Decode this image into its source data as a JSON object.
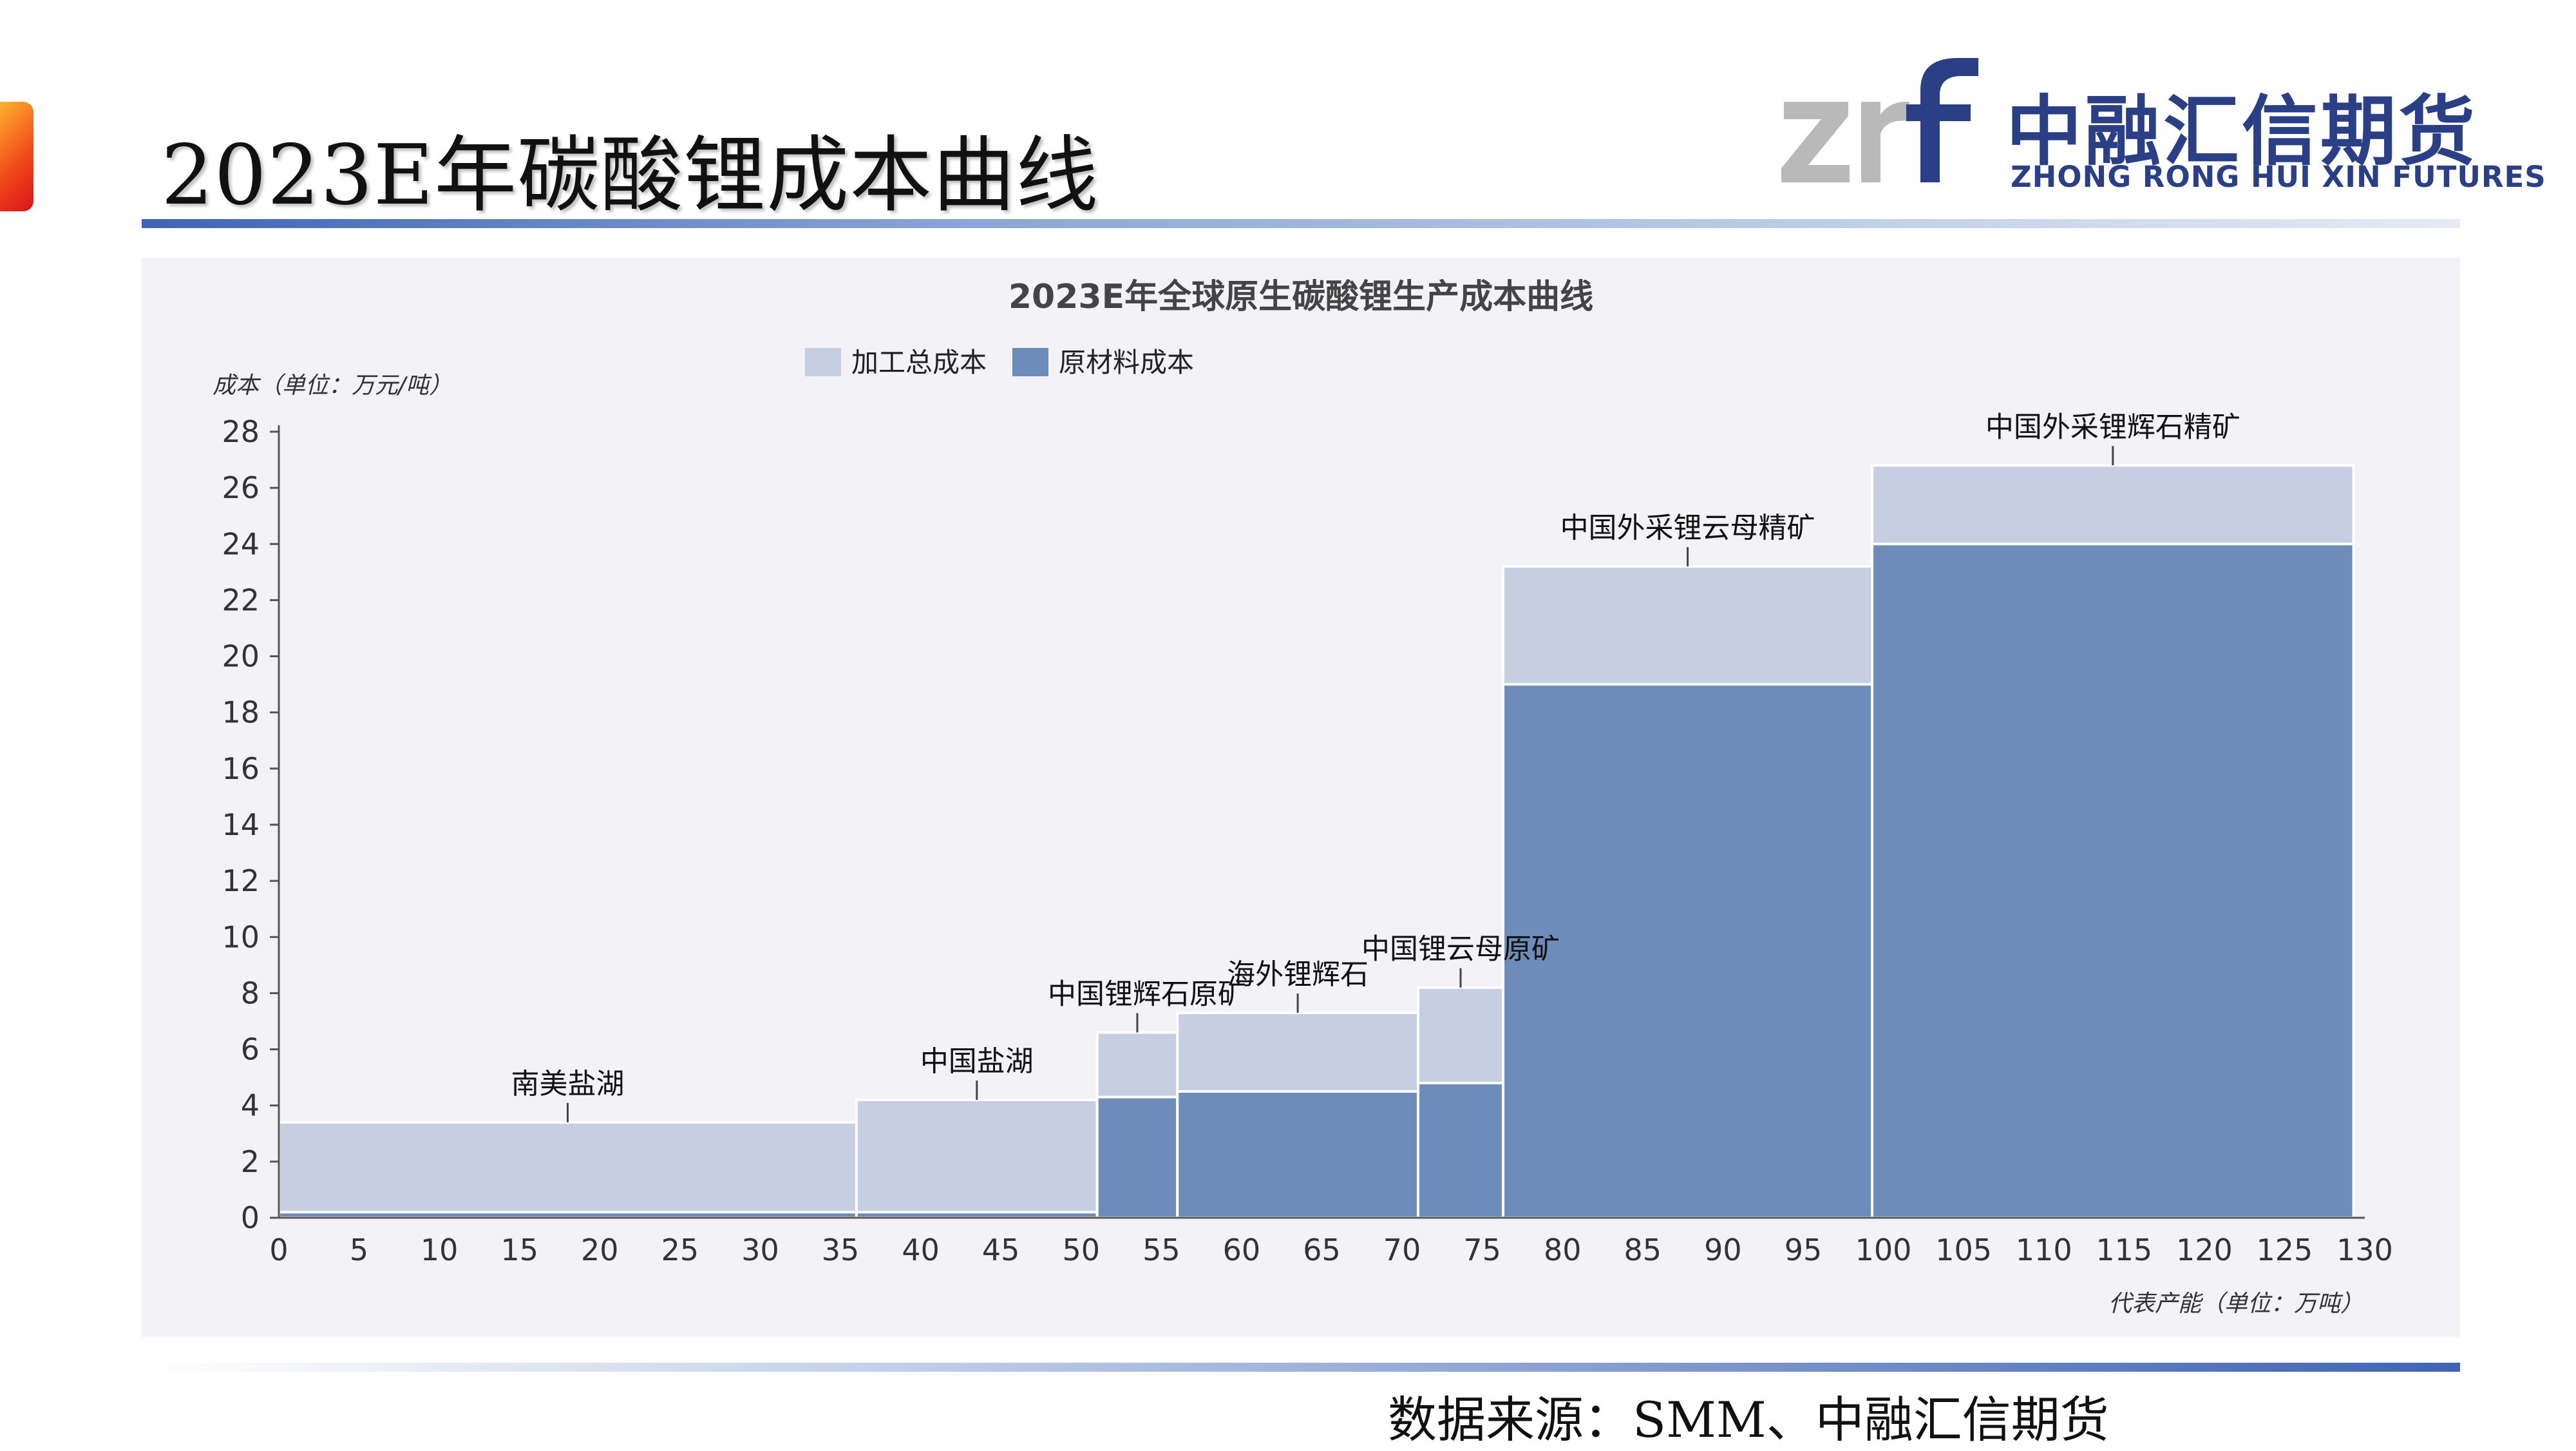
{
  "page": {
    "title": "2023E年碳酸锂成本曲线",
    "source": "数据来源：SMM、中融汇信期货"
  },
  "logo": {
    "mark_text": "zrf",
    "cn": "中融汇信期货",
    "en": "ZHONG RONG HUI XIN FUTURES"
  },
  "colors": {
    "processing": "#c5cfe1",
    "raw_material": "#6e8cb9",
    "brand_blue": "#2a3f86",
    "panel_bg": "#f2f2f7"
  },
  "chart_data": {
    "type": "bar",
    "subtype": "variable-width stacked cost curve",
    "title": "2023E年全球原生碳酸锂生产成本曲线",
    "ylabel": "成本（单位：万元/吨）",
    "xlabel": "代表产能（单位：万吨）",
    "xlim": [
      0,
      130
    ],
    "ylim": [
      0,
      28
    ],
    "xticks": [
      0,
      5,
      10,
      15,
      20,
      25,
      30,
      35,
      40,
      45,
      50,
      55,
      60,
      65,
      70,
      75,
      80,
      85,
      90,
      95,
      100,
      105,
      110,
      115,
      120,
      125,
      130
    ],
    "yticks": [
      0,
      2,
      4,
      6,
      8,
      10,
      12,
      14,
      16,
      18,
      20,
      22,
      24,
      26,
      28
    ],
    "legend": [
      {
        "name": "加工总成本",
        "color": "#c5cfe1"
      },
      {
        "name": "原材料成本",
        "color": "#6e8cb9"
      }
    ],
    "legend_position": "top-center",
    "grid": false,
    "segments": [
      {
        "label": "南美盐湖",
        "x_start": 0,
        "x_end": 36,
        "raw_material": 0.2,
        "total": 3.4
      },
      {
        "label": "中国盐湖",
        "x_start": 36,
        "x_end": 51,
        "raw_material": 0.2,
        "total": 4.2
      },
      {
        "label": "中国锂辉石原矿",
        "x_start": 51,
        "x_end": 56,
        "raw_material": 4.3,
        "total": 6.6
      },
      {
        "label": "海外锂辉石",
        "x_start": 56,
        "x_end": 71,
        "raw_material": 4.5,
        "total": 7.3
      },
      {
        "label": "中国锂云母原矿",
        "x_start": 71,
        "x_end": 76.3,
        "raw_material": 4.8,
        "total": 8.2
      },
      {
        "label": "中国外采锂云母精矿",
        "x_start": 76.3,
        "x_end": 99.3,
        "raw_material": 19.0,
        "total": 23.2
      },
      {
        "label": "中国外采锂辉石精矿",
        "x_start": 99.3,
        "x_end": 129.3,
        "raw_material": 24.0,
        "total": 26.8
      }
    ]
  }
}
